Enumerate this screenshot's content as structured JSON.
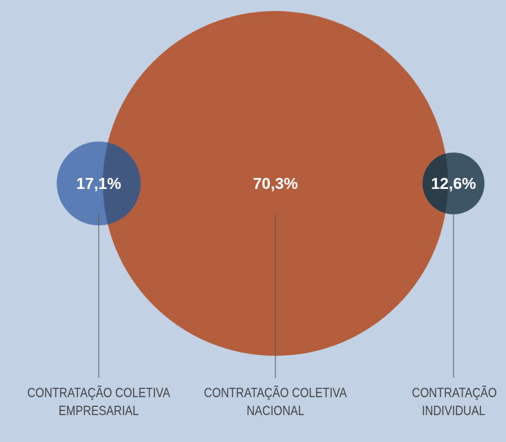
{
  "chart_data": {
    "type": "bubble",
    "categories": [
      "CONTRATAÇÃO COLETIVA EMPRESARIAL",
      "CONTRATAÇÃO COLETIVA NACIONAL",
      "CONTRATAÇÃO INDIVIDUAL"
    ],
    "values": [
      17.1,
      70.3,
      12.6
    ],
    "value_labels": [
      "17,1%",
      "70,3%",
      "12,6%"
    ],
    "colors": [
      "#5b7db5",
      "#b45e3e",
      "#3d5565"
    ]
  }
}
